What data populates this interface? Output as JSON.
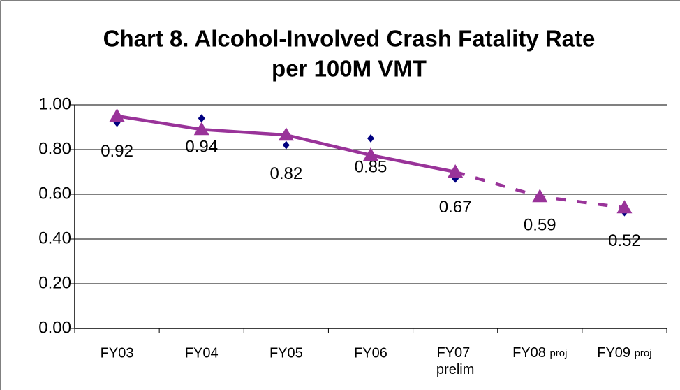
{
  "chart_data": {
    "type": "line",
    "title_lines": [
      "Chart 8. Alcohol-Involved Crash Fatality Rate",
      "per 100M VMT"
    ],
    "categories": [
      "FY03",
      "FY04",
      "FY05",
      "FY06",
      "FY07 prelim",
      "FY08 proj",
      "FY09 proj"
    ],
    "series": [
      {
        "color": "#000080",
        "marker": "diamond",
        "line": false,
        "values": [
          0.92,
          0.94,
          0.82,
          0.85,
          0.67,
          0.59,
          0.52
        ],
        "value_labels": [
          "0.92",
          "0.94",
          "0.82",
          "0.85",
          "0.67",
          "0.59",
          "0.52"
        ]
      },
      {
        "color": "#993399",
        "marker": "triangle",
        "line": true,
        "dash_start_index": 4,
        "values": [
          0.95,
          0.89,
          0.865,
          0.775,
          0.7,
          0.59,
          0.54
        ]
      }
    ],
    "ylim": [
      0,
      1
    ],
    "yticks": [
      {
        "value": 0,
        "label": "0.00"
      },
      {
        "value": 0.2,
        "label": "0.20"
      },
      {
        "value": 0.4,
        "label": "0.40"
      },
      {
        "value": 0.6,
        "label": "0.60"
      },
      {
        "value": 0.8,
        "label": "0.80"
      },
      {
        "value": 1,
        "label": "1.00"
      }
    ],
    "grid": true
  }
}
